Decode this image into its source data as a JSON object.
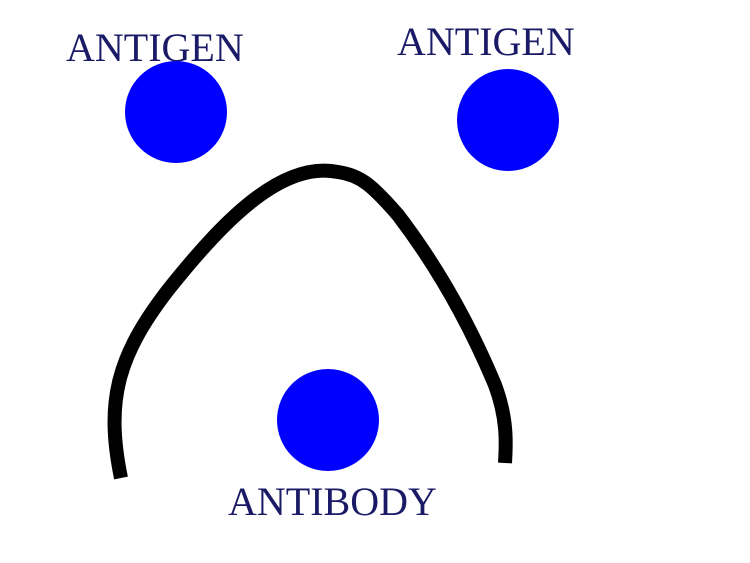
{
  "labels": {
    "antigen_left": "ANTIGEN",
    "antigen_right": "ANTIGEN",
    "antibody": "ANTIBODY"
  },
  "colors": {
    "circle_fill": "#0000ff",
    "label_text": "#1a1a66",
    "curve_stroke": "#000000",
    "background": "#ffffff"
  }
}
